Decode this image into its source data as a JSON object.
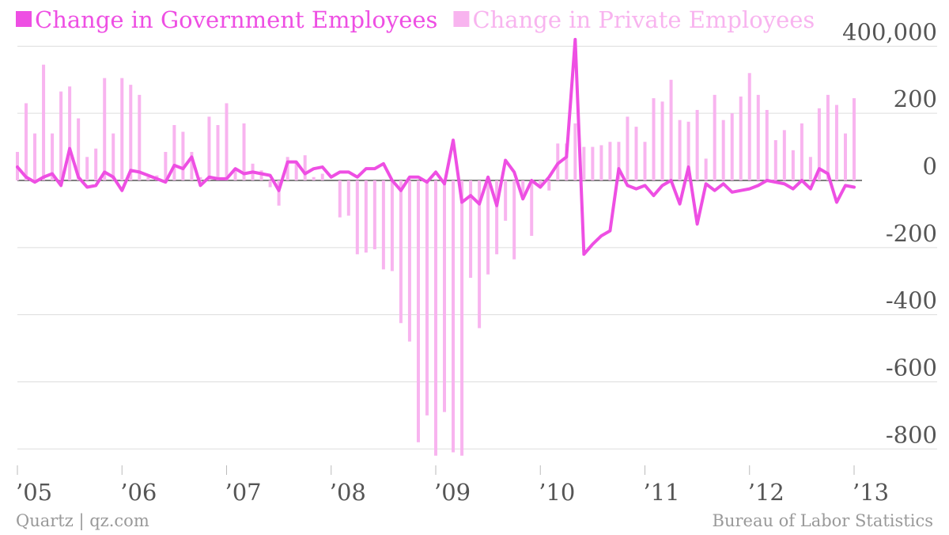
{
  "chart_data": {
    "type": "bar",
    "categories": [
      "’05",
      null,
      null,
      null,
      null,
      null,
      null,
      null,
      null,
      null,
      null,
      null,
      "’06",
      null,
      null,
      null,
      null,
      null,
      null,
      null,
      null,
      null,
      null,
      null,
      "’07",
      null,
      null,
      null,
      null,
      null,
      null,
      null,
      null,
      null,
      null,
      null,
      "’08",
      null,
      null,
      null,
      null,
      null,
      null,
      null,
      null,
      null,
      null,
      null,
      "’09",
      null,
      null,
      null,
      null,
      null,
      null,
      null,
      null,
      null,
      null,
      null,
      "’10",
      null,
      null,
      null,
      null,
      null,
      null,
      null,
      null,
      null,
      null,
      null,
      "’11",
      null,
      null,
      null,
      null,
      null,
      null,
      null,
      null,
      null,
      null,
      null,
      "’12",
      null,
      null,
      null,
      null,
      null,
      null,
      null,
      null,
      null,
      null,
      null,
      "’13"
    ],
    "series": [
      {
        "name": "Change in Government Employees",
        "type": "line",
        "color": "#ee4fe3",
        "values": [
          40000,
          10000,
          -5000,
          10000,
          20000,
          -15000,
          95000,
          10000,
          -20000,
          -15000,
          25000,
          10000,
          -30000,
          30000,
          25000,
          15000,
          5000,
          -5000,
          45000,
          35000,
          70000,
          -15000,
          10000,
          5000,
          5000,
          35000,
          20000,
          25000,
          20000,
          15000,
          -30000,
          55000,
          55000,
          20000,
          35000,
          40000,
          10000,
          25000,
          25000,
          10000,
          35000,
          35000,
          50000,
          0,
          -30000,
          10000,
          10000,
          -5000,
          25000,
          -10000,
          120000,
          -65000,
          -45000,
          -70000,
          10000,
          -75000,
          60000,
          25000,
          -55000,
          0,
          -20000,
          10000,
          50000,
          70000,
          420000,
          -220000,
          -190000,
          -165000,
          -150000,
          35000,
          -15000,
          -25000,
          -15000,
          -45000,
          -15000,
          0,
          -70000,
          40000,
          -130000,
          -10000,
          -30000,
          -10000,
          -35000,
          -30000,
          -25000,
          -15000,
          0,
          -5000,
          -10000,
          -25000,
          0,
          -25000,
          35000,
          20000,
          -65000,
          -15000,
          -20000
        ]
      },
      {
        "name": "Change in Private Employees",
        "type": "bar",
        "color": "#f8b4ef",
        "values": [
          85000,
          230000,
          140000,
          345000,
          140000,
          265000,
          280000,
          185000,
          70000,
          95000,
          305000,
          140000,
          305000,
          285000,
          255000,
          10000,
          15000,
          85000,
          165000,
          145000,
          85000,
          10000,
          190000,
          165000,
          230000,
          30000,
          170000,
          50000,
          30000,
          -20000,
          -75000,
          70000,
          55000,
          75000,
          10000,
          20000,
          0,
          -110000,
          -105000,
          -220000,
          -215000,
          -205000,
          -265000,
          -270000,
          -425000,
          -480000,
          -780000,
          -700000,
          -820000,
          -690000,
          -810000,
          -820000,
          -290000,
          -440000,
          -280000,
          -220000,
          -120000,
          -235000,
          -40000,
          -165000,
          -20000,
          -30000,
          110000,
          110000,
          170000,
          100000,
          100000,
          105000,
          115000,
          115000,
          190000,
          160000,
          115000,
          245000,
          235000,
          300000,
          180000,
          175000,
          210000,
          65000,
          255000,
          180000,
          200000,
          250000,
          320000,
          255000,
          210000,
          120000,
          150000,
          90000,
          170000,
          70000,
          215000,
          255000,
          225000,
          140000,
          245000
        ]
      }
    ],
    "ylim": [
      -830000,
      440000
    ],
    "yticks": [
      {
        "value": 400000,
        "label": "400,000"
      },
      {
        "value": 200000,
        "label": "200"
      },
      0,
      {
        "value": -200000,
        "label": "-200"
      },
      {
        "value": -400000,
        "label": "-400"
      },
      {
        "value": -600000,
        "label": "-600"
      },
      {
        "value": -800000,
        "label": "-800"
      }
    ],
    "grid": true,
    "legend": "top-left",
    "source_left": "Quartz | qz.com",
    "source_right": "Bureau of Labor Statistics"
  }
}
